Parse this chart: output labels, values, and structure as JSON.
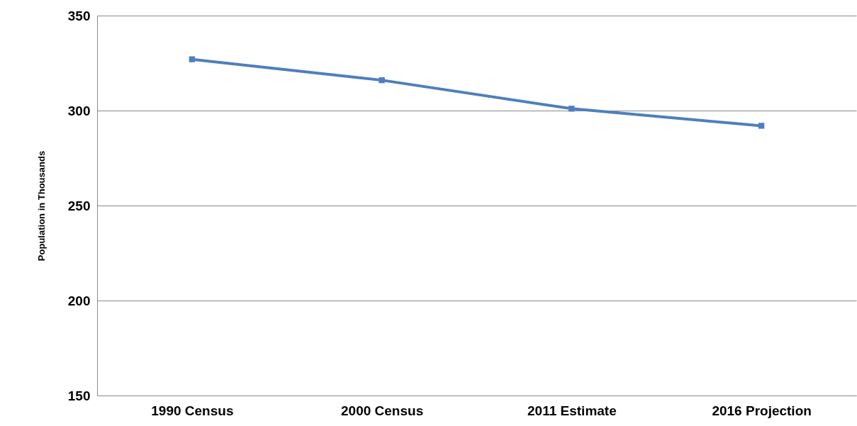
{
  "chart_data": {
    "type": "line",
    "ylabel": "Population in Thousands",
    "categories": [
      "1990 Census",
      "2000 Census",
      "2011 Estimate",
      "2016 Projection"
    ],
    "series": [
      {
        "color": "#4f7fbc",
        "values": [
          327,
          316,
          301,
          292
        ]
      }
    ],
    "ylim": [
      150,
      350
    ],
    "yticks": [
      150,
      200,
      250,
      300,
      350
    ],
    "grid": "y",
    "legend": false,
    "marker": "square",
    "line_style": "solid"
  }
}
